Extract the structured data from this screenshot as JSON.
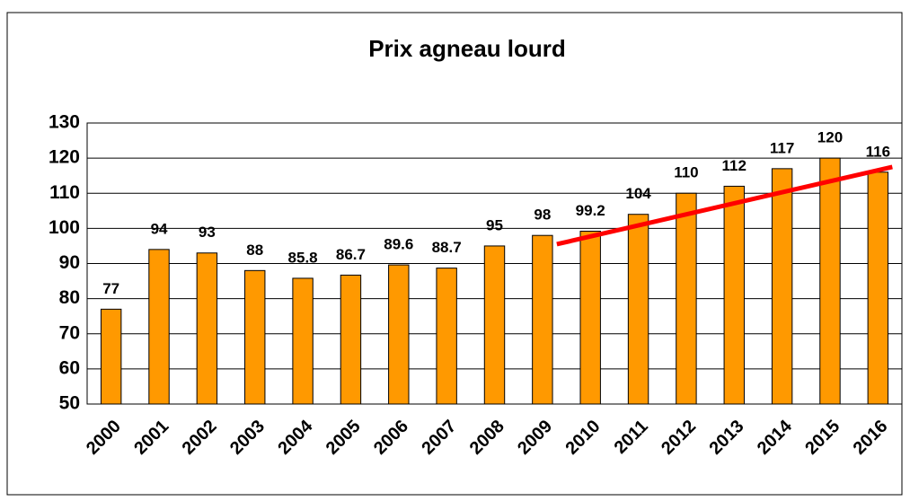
{
  "chart_data": {
    "type": "bar",
    "title": "Prix agneau lourd",
    "categories": [
      "2000",
      "2001",
      "2002",
      "2003",
      "2004",
      "2005",
      "2006",
      "2007",
      "2008",
      "2009",
      "2010",
      "2011",
      "2012",
      "2013",
      "2014",
      "2015",
      "2016"
    ],
    "values": [
      77,
      94,
      93,
      88,
      85.8,
      86.7,
      89.6,
      88.7,
      95,
      98,
      99.2,
      104,
      110,
      112,
      117,
      120,
      116
    ],
    "color": "#ff9900",
    "ylim": [
      50,
      130
    ],
    "yticks": [
      50,
      60,
      70,
      80,
      90,
      100,
      110,
      120,
      130
    ],
    "grid": true,
    "trendline": {
      "color": "#ff0000",
      "x": [
        "2009",
        "2016"
      ],
      "values": [
        95.5,
        117.5
      ]
    }
  }
}
